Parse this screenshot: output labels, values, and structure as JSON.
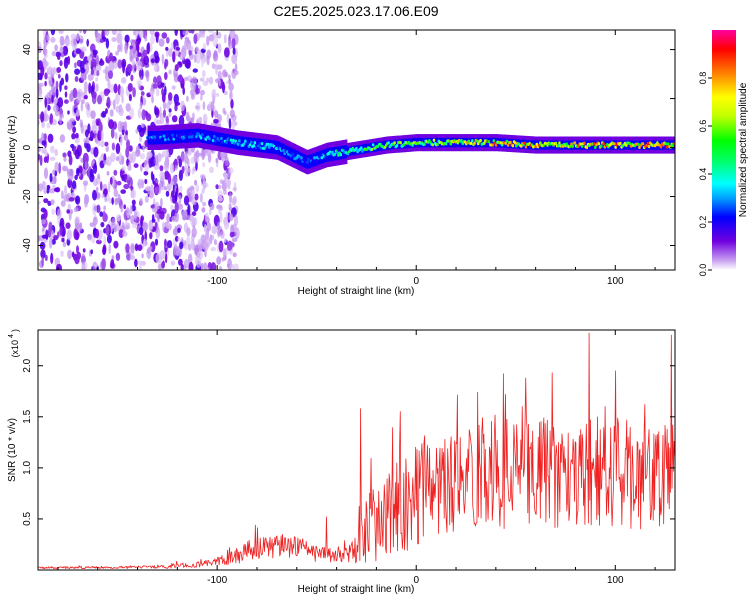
{
  "title": "C2E5.2025.023.17.06.E09",
  "chart_data": [
    {
      "type": "heatmap",
      "name": "spectrogram",
      "xlabel": "Height of straight line (km)",
      "ylabel": "Frequency (Hz)",
      "xlim": [
        -190,
        130
      ],
      "ylim": [
        -50,
        48
      ],
      "xticks": [
        -100,
        0,
        100
      ],
      "yticks": [
        -40,
        -20,
        0,
        20,
        40
      ],
      "colorbar": {
        "label": "Normalized spectral amplitude",
        "range": [
          0,
          1
        ],
        "ticks": [
          0.0,
          0.2,
          0.4,
          0.6,
          0.8
        ],
        "tick_labels": [
          "0.0",
          "0.2",
          "0.4",
          "0.6",
          "0.8"
        ],
        "colors": [
          "#ffffff",
          "#c8a0f0",
          "#7000e0",
          "#0000ff",
          "#00a0ff",
          "#00ffff",
          "#00ff60",
          "#00ff00",
          "#c0ff00",
          "#ffff00",
          "#ff8000",
          "#ff0000",
          "#ff00a0"
        ]
      },
      "ridge": [
        {
          "x": -130,
          "freq": 4,
          "amp": 0.3
        },
        {
          "x": -110,
          "freq": 5,
          "amp": 0.3
        },
        {
          "x": -90,
          "freq": 2,
          "amp": 0.38
        },
        {
          "x": -70,
          "freq": 0,
          "amp": 0.35
        },
        {
          "x": -55,
          "freq": -6,
          "amp": 0.28
        },
        {
          "x": -45,
          "freq": -3,
          "amp": 0.4
        },
        {
          "x": -30,
          "freq": -1,
          "amp": 0.5
        },
        {
          "x": -15,
          "freq": 1,
          "amp": 0.6
        },
        {
          "x": 0,
          "freq": 2,
          "amp": 0.6
        },
        {
          "x": 20,
          "freq": 2,
          "amp": 0.7
        },
        {
          "x": 40,
          "freq": 2,
          "amp": 0.8
        },
        {
          "x": 60,
          "freq": 1,
          "amp": 0.8
        },
        {
          "x": 80,
          "freq": 1,
          "amp": 0.75
        },
        {
          "x": 100,
          "freq": 1,
          "amp": 0.8
        },
        {
          "x": 120,
          "freq": 1,
          "amp": 0.8
        },
        {
          "x": 130,
          "freq": 1,
          "amp": 0.8
        }
      ],
      "noise_region_x": [
        -190,
        -100
      ]
    },
    {
      "type": "line",
      "name": "snr",
      "xlabel": "Height of straight line (km)",
      "ylabel": "SNR (10 * v/v)",
      "y_multiplier": "(x10^4)",
      "y_multiplier_base": "(x10",
      "y_multiplier_exp": "4",
      "xlim": [
        -190,
        130
      ],
      "ylim": [
        0,
        2.35
      ],
      "xticks": [
        -100,
        0,
        100
      ],
      "yticks": [
        0.5,
        1.0,
        1.5,
        2.0
      ],
      "ytick_labels": [
        "0.5",
        "1.0",
        "1.5",
        "2.0"
      ],
      "color": "#ee2222",
      "envelope": {
        "x": [
          -190,
          -130,
          -110,
          -100,
          -90,
          -80,
          -70,
          -60,
          -50,
          -40,
          -32,
          -30,
          -20,
          -10,
          0,
          20,
          40,
          60,
          80,
          100,
          120,
          130
        ],
        "mean": [
          0.02,
          0.03,
          0.05,
          0.08,
          0.14,
          0.22,
          0.26,
          0.22,
          0.16,
          0.14,
          0.18,
          0.3,
          0.45,
          0.6,
          0.72,
          0.85,
          0.95,
          0.95,
          0.98,
          0.95,
          0.9,
          0.9
        ],
        "spread": [
          0.01,
          0.015,
          0.03,
          0.05,
          0.08,
          0.12,
          0.15,
          0.12,
          0.08,
          0.07,
          0.1,
          0.28,
          0.4,
          0.45,
          0.5,
          0.5,
          0.55,
          0.55,
          0.55,
          0.55,
          0.5,
          0.5
        ]
      },
      "peaks": [
        {
          "x": -45,
          "y": 0.52
        },
        {
          "x": -28,
          "y": 1.58
        },
        {
          "x": -8,
          "y": 1.55
        },
        {
          "x": 45,
          "y": 1.72
        },
        {
          "x": 55,
          "y": 1.88
        },
        {
          "x": 87,
          "y": 2.32
        },
        {
          "x": 100,
          "y": 1.95
        },
        {
          "x": 115,
          "y": 1.62
        },
        {
          "x": 128,
          "y": 2.3
        }
      ]
    }
  ]
}
